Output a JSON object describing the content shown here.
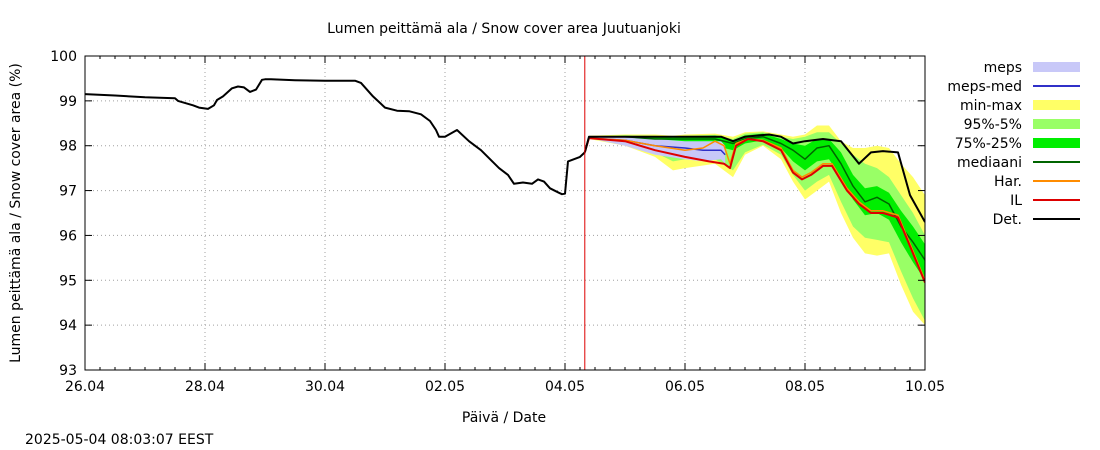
{
  "chart_data": {
    "type": "line",
    "title": "Lumen peittämä ala / Snow cover area Juutuanjoki",
    "xlabel": "Päivä / Date",
    "ylabel": "Lumen peittämä ala / Snow cover area (%)",
    "footer": "2025-05-04 08:03:07 EEST",
    "xlim": [
      0,
      14
    ],
    "ylim": [
      93,
      100
    ],
    "x_ticks": [
      {
        "x": 0,
        "label": "26.04"
      },
      {
        "x": 2,
        "label": "28.04"
      },
      {
        "x": 4,
        "label": "30.04"
      },
      {
        "x": 6,
        "label": "02.05"
      },
      {
        "x": 8,
        "label": "04.05"
      },
      {
        "x": 10,
        "label": "06.05"
      },
      {
        "x": 12,
        "label": "08.05"
      },
      {
        "x": 14,
        "label": "10.05"
      }
    ],
    "y_ticks": [
      93,
      94,
      95,
      96,
      97,
      98,
      99,
      100
    ],
    "grid": true,
    "forecast_start_x": 8.33,
    "legend": [
      {
        "label": "meps",
        "color": "#c8c8f8",
        "kind": "box"
      },
      {
        "label": "meps-med",
        "color": "#3030c8",
        "kind": "line"
      },
      {
        "label": "min-max",
        "color": "#ffff66",
        "kind": "box"
      },
      {
        "label": "95%-5%",
        "color": "#99ff66",
        "kind": "box"
      },
      {
        "label": "75%-25%",
        "color": "#00ee00",
        "kind": "box"
      },
      {
        "label": "mediaani",
        "color": "#006400",
        "kind": "line"
      },
      {
        "label": "Har.",
        "color": "#ff8c00",
        "kind": "line"
      },
      {
        "label": "IL",
        "color": "#dd0000",
        "kind": "line"
      },
      {
        "label": "Det.",
        "color": "#000000",
        "kind": "line"
      }
    ],
    "series": {
      "history": {
        "name": "Det.",
        "color": "#000000",
        "x": [
          0,
          0.5,
          1.0,
          1.5,
          1.55,
          1.8,
          1.9,
          2.05,
          2.15,
          2.2,
          2.3,
          2.45,
          2.55,
          2.65,
          2.75,
          2.85,
          2.95,
          3.0,
          3.1,
          3.5,
          4.0,
          4.5,
          4.6,
          4.8,
          5.0,
          5.2,
          5.4,
          5.6,
          5.75,
          5.85,
          5.9,
          6.0,
          6.2,
          6.4,
          6.6,
          6.9,
          7.05,
          7.15,
          7.3,
          7.45,
          7.55,
          7.65,
          7.75,
          7.9,
          7.95,
          8.0,
          8.05,
          8.15,
          8.25,
          8.33
        ],
        "values": [
          99.15,
          99.12,
          99.08,
          99.06,
          99.0,
          98.9,
          98.85,
          98.82,
          98.9,
          99.02,
          99.1,
          99.28,
          99.32,
          99.3,
          99.2,
          99.25,
          99.47,
          99.48,
          99.48,
          99.46,
          99.45,
          99.45,
          99.4,
          99.1,
          98.85,
          98.78,
          98.77,
          98.7,
          98.55,
          98.35,
          98.2,
          98.2,
          98.35,
          98.1,
          97.9,
          97.5,
          97.35,
          97.15,
          97.18,
          97.15,
          97.25,
          97.2,
          97.05,
          96.95,
          96.92,
          96.93,
          97.65,
          97.7,
          97.75,
          97.85
        ]
      },
      "det": {
        "name": "Det.",
        "color": "#000000",
        "x": [
          8.33,
          8.4,
          9.0,
          9.5,
          10.0,
          10.4,
          10.6,
          10.8,
          11.0,
          11.4,
          11.6,
          11.8,
          12.0,
          12.3,
          12.6,
          12.9,
          13.1,
          13.3,
          13.55,
          13.75,
          14.0
        ],
        "values": [
          97.85,
          98.2,
          98.2,
          98.2,
          98.2,
          98.2,
          98.2,
          98.1,
          98.2,
          98.25,
          98.2,
          98.05,
          98.1,
          98.15,
          98.1,
          97.6,
          97.85,
          97.88,
          97.85,
          96.9,
          96.3
        ]
      },
      "il": {
        "name": "IL",
        "color": "#dd0000",
        "x": [
          8.33,
          8.4,
          9.0,
          9.5,
          10.0,
          10.4,
          10.65,
          10.75,
          10.85,
          11.05,
          11.3,
          11.6,
          11.8,
          11.95,
          12.1,
          12.3,
          12.45,
          12.7,
          12.9,
          13.1,
          13.3,
          13.55,
          13.8,
          14.0
        ],
        "values": [
          97.85,
          98.17,
          98.1,
          97.9,
          97.75,
          97.65,
          97.6,
          97.5,
          98.0,
          98.15,
          98.1,
          97.9,
          97.4,
          97.25,
          97.35,
          97.55,
          97.55,
          97.0,
          96.7,
          96.5,
          96.5,
          96.4,
          95.6,
          94.95
        ]
      },
      "har": {
        "name": "Har.",
        "color": "#ff8c00",
        "x": [
          8.33,
          8.4,
          9.0,
          9.5,
          10.0,
          10.3,
          10.5,
          10.65,
          10.75,
          10.85,
          11.05,
          11.3,
          11.6,
          11.8,
          11.95,
          12.1,
          12.3,
          12.45,
          12.7,
          12.9,
          13.1,
          13.3,
          13.55,
          13.8,
          14.0
        ],
        "values": [
          97.85,
          98.17,
          98.12,
          98.0,
          97.9,
          97.95,
          98.1,
          98.0,
          97.6,
          98.05,
          98.15,
          98.12,
          97.95,
          97.45,
          97.3,
          97.4,
          97.6,
          97.6,
          97.05,
          96.75,
          96.55,
          96.55,
          96.45,
          95.65,
          95.0
        ]
      },
      "mediaani": {
        "name": "mediaani",
        "color": "#006400",
        "x": [
          8.33,
          8.4,
          9.0,
          9.5,
          10.0,
          10.5,
          10.8,
          11.0,
          11.3,
          11.6,
          11.8,
          12.0,
          12.2,
          12.4,
          12.6,
          12.8,
          13.0,
          13.2,
          13.4,
          13.6,
          13.8,
          14.0
        ],
        "values": [
          97.85,
          98.2,
          98.2,
          98.15,
          98.15,
          98.15,
          98.05,
          98.15,
          98.2,
          98.05,
          97.9,
          97.7,
          97.95,
          98.0,
          97.6,
          97.1,
          96.75,
          96.85,
          96.7,
          96.2,
          95.85,
          95.45
        ]
      },
      "meps_med": {
        "name": "meps-med",
        "color": "#3030c8",
        "x": [
          8.33,
          8.4,
          9.0,
          9.5,
          10.0,
          10.3,
          10.6,
          10.67
        ],
        "values": [
          97.85,
          98.17,
          98.12,
          98.0,
          97.95,
          97.9,
          97.9,
          97.8
        ]
      }
    },
    "bands": {
      "meps": {
        "name": "meps",
        "color": "#c8c8f8",
        "x": [
          8.33,
          8.4,
          9.0,
          9.5,
          10.0,
          10.3,
          10.6,
          10.67
        ],
        "lower": [
          97.85,
          98.17,
          98.0,
          97.8,
          97.7,
          97.65,
          97.7,
          97.6
        ],
        "upper": [
          97.85,
          98.2,
          98.2,
          98.15,
          98.1,
          98.1,
          98.1,
          98.0
        ]
      },
      "min_max": {
        "name": "min-max",
        "color": "#ffff66",
        "x": [
          8.33,
          8.4,
          9.0,
          9.5,
          9.8,
          10.0,
          10.5,
          10.8,
          11.0,
          11.3,
          11.6,
          11.8,
          12.0,
          12.2,
          12.4,
          12.6,
          12.8,
          13.0,
          13.2,
          13.4,
          13.6,
          13.8,
          14.0
        ],
        "lower": [
          97.85,
          98.15,
          98.0,
          97.75,
          97.45,
          97.5,
          97.6,
          97.3,
          97.8,
          98.0,
          97.7,
          97.2,
          96.8,
          97.0,
          97.2,
          96.5,
          95.95,
          95.6,
          95.55,
          95.6,
          94.9,
          94.3,
          94.0
        ],
        "upper": [
          97.85,
          98.22,
          98.25,
          98.25,
          98.22,
          98.25,
          98.27,
          98.2,
          98.3,
          98.32,
          98.25,
          98.2,
          98.25,
          98.45,
          98.45,
          98.1,
          97.95,
          97.95,
          98.0,
          97.95,
          97.6,
          97.3,
          96.9
        ]
      },
      "p95_5": {
        "name": "95%-5%",
        "color": "#99ff66",
        "x": [
          8.33,
          8.4,
          9.0,
          9.5,
          9.8,
          10.0,
          10.5,
          10.8,
          11.0,
          11.3,
          11.6,
          11.8,
          12.0,
          12.2,
          12.4,
          12.6,
          12.8,
          13.0,
          13.2,
          13.4,
          13.6,
          13.8,
          14.0
        ],
        "lower": [
          97.85,
          98.16,
          98.05,
          97.85,
          97.65,
          97.7,
          97.7,
          97.45,
          97.85,
          98.02,
          97.8,
          97.35,
          97.0,
          97.2,
          97.35,
          96.75,
          96.2,
          95.95,
          95.9,
          95.85,
          95.2,
          94.6,
          94.1
        ],
        "upper": [
          97.85,
          98.21,
          98.23,
          98.22,
          98.2,
          98.22,
          98.24,
          98.15,
          98.27,
          98.3,
          98.2,
          98.15,
          98.2,
          98.3,
          98.3,
          98.05,
          97.8,
          97.6,
          97.5,
          97.3,
          96.9,
          96.5,
          96.0
        ]
      },
      "p75_25": {
        "name": "75%-25%",
        "color": "#00ee00",
        "x": [
          8.33,
          8.4,
          9.0,
          9.5,
          9.8,
          10.0,
          10.5,
          10.8,
          11.0,
          11.3,
          11.6,
          11.8,
          12.0,
          12.2,
          12.4,
          12.6,
          12.8,
          13.0,
          13.2,
          13.4,
          13.6,
          13.8,
          14.0
        ],
        "lower": [
          97.85,
          98.18,
          98.12,
          98.0,
          97.95,
          97.95,
          98.0,
          97.9,
          98.05,
          98.12,
          97.95,
          97.65,
          97.45,
          97.65,
          97.7,
          97.3,
          96.8,
          96.45,
          96.5,
          96.35,
          95.85,
          95.4,
          95.0
        ],
        "upper": [
          97.85,
          98.2,
          98.22,
          98.2,
          98.18,
          98.2,
          98.22,
          98.12,
          98.23,
          98.27,
          98.15,
          98.05,
          98.0,
          98.15,
          98.15,
          97.85,
          97.35,
          97.05,
          97.1,
          96.95,
          96.55,
          96.2,
          95.8
        ]
      }
    }
  }
}
